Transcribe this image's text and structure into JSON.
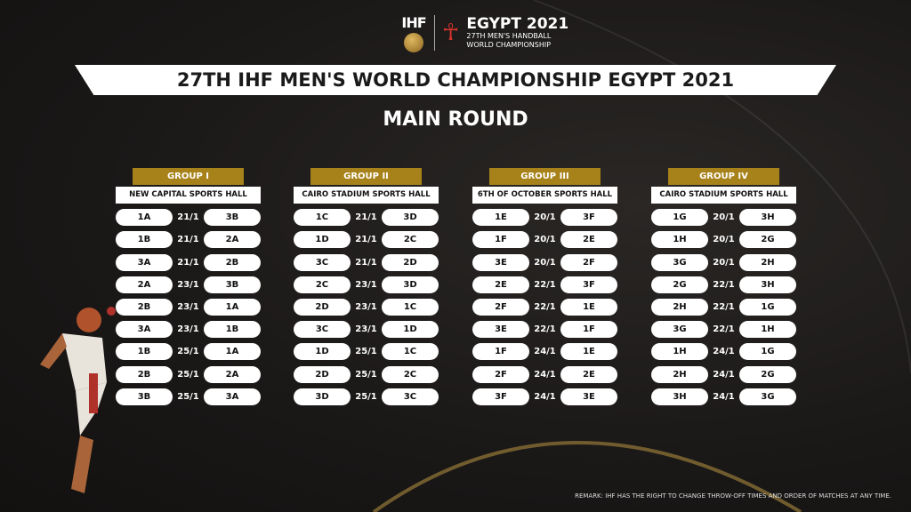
{
  "header": {
    "ihf_logo": "IHF",
    "event_logo": "EGYPT 2021",
    "event_sub1": "27TH MEN'S HANDBALL",
    "event_sub2": "WORLD CHAMPIONSHIP"
  },
  "title": "27TH IHF MEN'S WORLD CHAMPIONSHIP EGYPT 2021",
  "subtitle": "MAIN ROUND",
  "groups": [
    {
      "name": "GROUP I",
      "venue": "NEW CAPITAL SPORTS HALL",
      "matches": [
        [
          "1A",
          "21/1",
          "3B"
        ],
        [
          "1B",
          "21/1",
          "2A"
        ],
        [
          "3A",
          "21/1",
          "2B"
        ],
        [
          "2A",
          "23/1",
          "3B"
        ],
        [
          "2B",
          "23/1",
          "1A"
        ],
        [
          "3A",
          "23/1",
          "1B"
        ],
        [
          "1B",
          "25/1",
          "1A"
        ],
        [
          "2B",
          "25/1",
          "2A"
        ],
        [
          "3B",
          "25/1",
          "3A"
        ]
      ]
    },
    {
      "name": "GROUP II",
      "venue": "CAIRO STADIUM SPORTS HALL",
      "matches": [
        [
          "1C",
          "21/1",
          "3D"
        ],
        [
          "1D",
          "21/1",
          "2C"
        ],
        [
          "3C",
          "21/1",
          "2D"
        ],
        [
          "2C",
          "23/1",
          "3D"
        ],
        [
          "2D",
          "23/1",
          "1C"
        ],
        [
          "3C",
          "23/1",
          "1D"
        ],
        [
          "1D",
          "25/1",
          "1C"
        ],
        [
          "2D",
          "25/1",
          "2C"
        ],
        [
          "3D",
          "25/1",
          "3C"
        ]
      ]
    },
    {
      "name": "GROUP III",
      "venue": "6TH OF OCTOBER SPORTS HALL",
      "matches": [
        [
          "1E",
          "20/1",
          "3F"
        ],
        [
          "1F",
          "20/1",
          "2E"
        ],
        [
          "3E",
          "20/1",
          "2F"
        ],
        [
          "2E",
          "22/1",
          "3F"
        ],
        [
          "2F",
          "22/1",
          "1E"
        ],
        [
          "3E",
          "22/1",
          "1F"
        ],
        [
          "1F",
          "24/1",
          "1E"
        ],
        [
          "2F",
          "24/1",
          "2E"
        ],
        [
          "3F",
          "24/1",
          "3E"
        ]
      ]
    },
    {
      "name": "GROUP IV",
      "venue": "CAIRO STADIUM SPORTS HALL",
      "matches": [
        [
          "1G",
          "20/1",
          "3H"
        ],
        [
          "1H",
          "20/1",
          "2G"
        ],
        [
          "3G",
          "20/1",
          "2H"
        ],
        [
          "2G",
          "22/1",
          "3H"
        ],
        [
          "2H",
          "22/1",
          "1G"
        ],
        [
          "3G",
          "22/1",
          "1H"
        ],
        [
          "1H",
          "24/1",
          "1G"
        ],
        [
          "2H",
          "24/1",
          "2G"
        ],
        [
          "3H",
          "24/1",
          "3G"
        ]
      ]
    }
  ],
  "remark": "REMARK: IHF HAS THE RIGHT TO CHANGE THROW-OFF TIMES AND ORDER OF MATCHES AT ANY TIME.",
  "colors": {
    "gold": "#a7821a",
    "background": "#1c1a19"
  }
}
